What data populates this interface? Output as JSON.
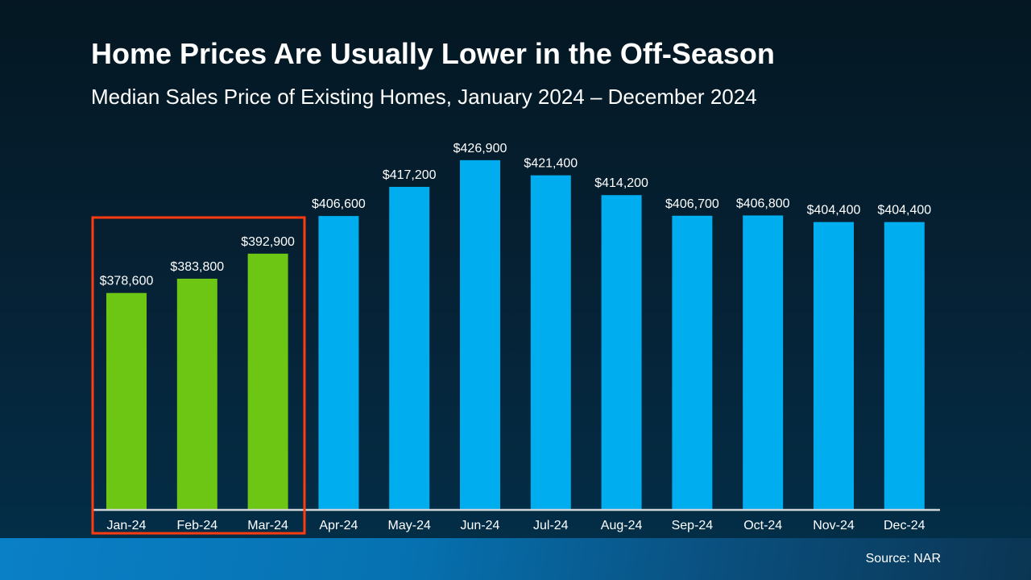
{
  "chart_data": {
    "type": "bar",
    "title": "Home Prices Are Usually Lower in the Off-Season",
    "subtitle": "Median Sales Price of Existing Homes, January 2024 – December 2024",
    "xlabel": "",
    "ylabel": "",
    "ylim": [
      300000,
      450000
    ],
    "grid": false,
    "categories": [
      "Jan-24",
      "Feb-24",
      "Mar-24",
      "Apr-24",
      "May-24",
      "Jun-24",
      "Jul-24",
      "Aug-24",
      "Sep-24",
      "Oct-24",
      "Nov-24",
      "Dec-24"
    ],
    "values": [
      378600,
      383800,
      392900,
      406600,
      417200,
      426900,
      421400,
      414200,
      406700,
      406800,
      404400,
      404400
    ],
    "data_labels": [
      "$378,600",
      "$383,800",
      "$392,900",
      "$406,600",
      "$417,200",
      "$426,900",
      "$421,400",
      "$414,200",
      "$406,700",
      "$406,800",
      "$404,400",
      "$404,400"
    ],
    "highlighted_categories": [
      "Jan-24",
      "Feb-24",
      "Mar-24"
    ],
    "colors": {
      "highlight": "#6cc613",
      "default": "#00adef",
      "highlight_box": "#ff3b0f",
      "axis": "#d0d3d6"
    }
  },
  "footer": {
    "source": "Source: NAR"
  }
}
